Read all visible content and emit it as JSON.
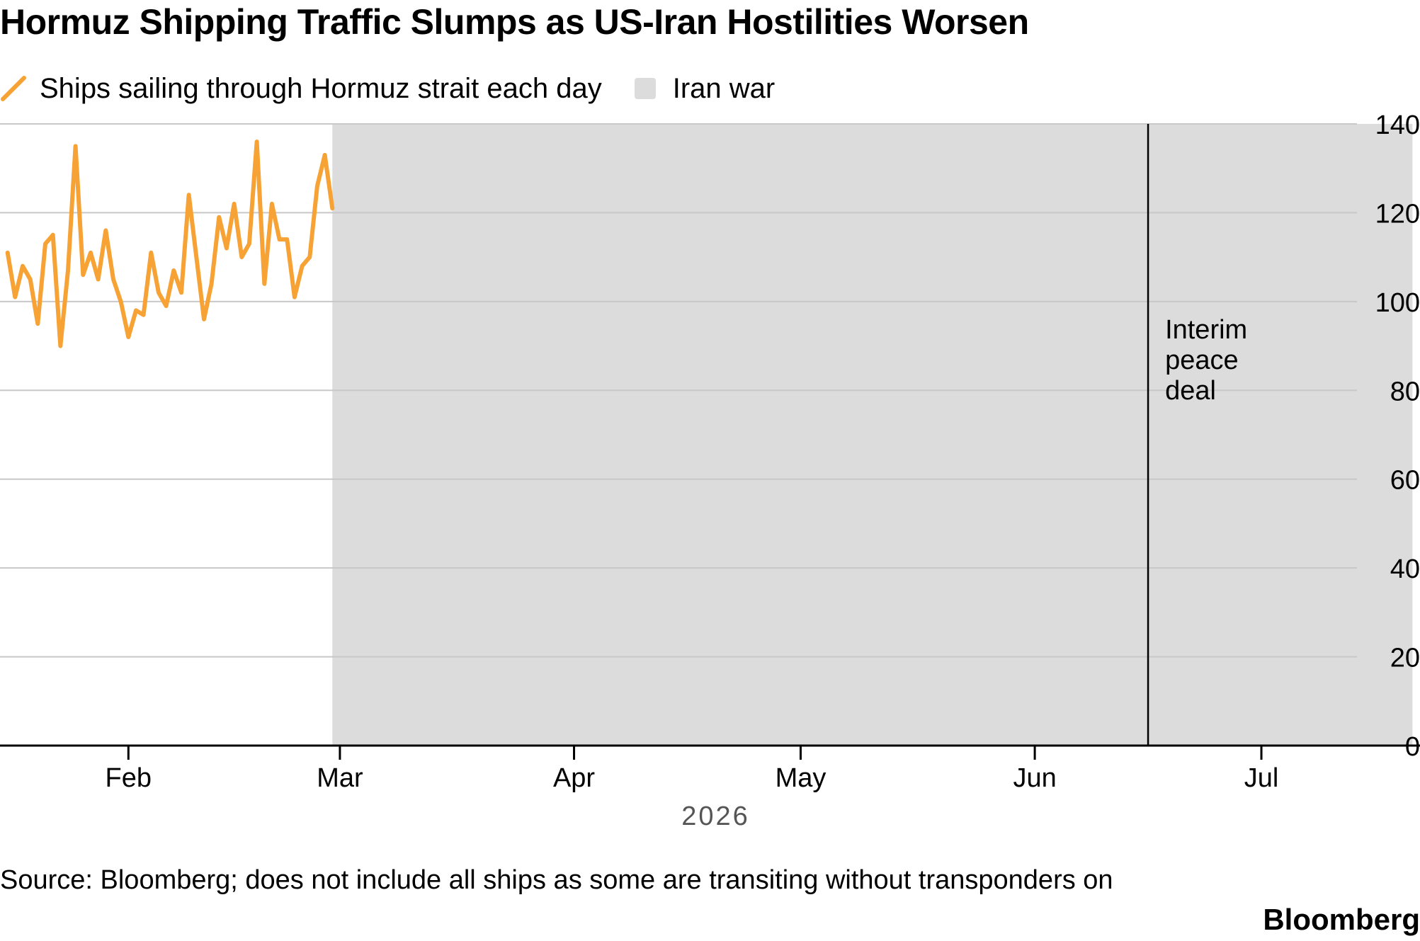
{
  "title": "Hormuz Shipping Traffic Slumps as US-Iran Hostilities Worsen",
  "legend": {
    "line_label": "Ships sailing through Hormuz strait each day",
    "band_label": "Iran war"
  },
  "source": "Source: Bloomberg; does not include all ships as some are transiting without transponders on",
  "brand": "Bloomberg",
  "colors": {
    "line": "#f7a234",
    "band": "#dcdcdc",
    "grid": "#c8c8c8",
    "axis": "#000000"
  },
  "chart_data": {
    "type": "line",
    "title": "Hormuz Shipping Traffic Slumps as US-Iran Hostilities Worsen",
    "ylim": [
      0,
      140
    ],
    "yticks": [
      0,
      20,
      40,
      60,
      80,
      100,
      120,
      140
    ],
    "ytick_labels": [
      "0",
      "20",
      "40",
      "60",
      "80",
      "100",
      "120",
      "140"
    ],
    "y_axis_side": "right",
    "grid": "horizontal",
    "legend_position": "top-left",
    "x_range": [
      "2026-01-15",
      "2026-07-22"
    ],
    "xticks": [
      {
        "date": "2026-02-01",
        "label": "Feb"
      },
      {
        "date": "2026-03-01",
        "label": "Mar"
      },
      {
        "date": "2026-04-01",
        "label": "Apr"
      },
      {
        "date": "2026-05-01",
        "label": "May"
      },
      {
        "date": "2026-06-01",
        "label": "Jun"
      },
      {
        "date": "2026-07-01",
        "label": "Jul"
      }
    ],
    "year_label": "2026",
    "shaded_range": {
      "label": "Iran war",
      "start": "2026-02-28",
      "end": "2026-07-21"
    },
    "annotation": {
      "date": "2026-06-16",
      "label_lines": [
        "Interim",
        "peace",
        "deal"
      ]
    },
    "series": [
      {
        "name": "Ships sailing through Hormuz strait each day",
        "points": [
          [
            "2026-01-16",
            111
          ],
          [
            "2026-01-17",
            101
          ],
          [
            "2026-01-18",
            108
          ],
          [
            "2026-01-19",
            105
          ],
          [
            "2026-01-20",
            95
          ],
          [
            "2026-01-21",
            113
          ],
          [
            "2026-01-22",
            115
          ],
          [
            "2026-01-23",
            90
          ],
          [
            "2026-01-24",
            107
          ],
          [
            "2026-01-25",
            135
          ],
          [
            "2026-01-26",
            106
          ],
          [
            "2026-01-27",
            111
          ],
          [
            "2026-01-28",
            105
          ],
          [
            "2026-01-29",
            116
          ],
          [
            "2026-01-30",
            105
          ],
          [
            "2026-01-31",
            100
          ],
          [
            "2026-02-01",
            92
          ],
          [
            "2026-02-02",
            98
          ],
          [
            "2026-02-03",
            97
          ],
          [
            "2026-02-04",
            111
          ],
          [
            "2026-02-05",
            102
          ],
          [
            "2026-02-06",
            99
          ],
          [
            "2026-02-07",
            107
          ],
          [
            "2026-02-08",
            102
          ],
          [
            "2026-02-09",
            124
          ],
          [
            "2026-02-10",
            110
          ],
          [
            "2026-02-11",
            96
          ],
          [
            "2026-02-12",
            104
          ],
          [
            "2026-02-13",
            119
          ],
          [
            "2026-02-14",
            112
          ],
          [
            "2026-02-15",
            122
          ],
          [
            "2026-02-16",
            110
          ],
          [
            "2026-02-17",
            113
          ],
          [
            "2026-02-18",
            136
          ],
          [
            "2026-02-19",
            104
          ],
          [
            "2026-02-20",
            122
          ],
          [
            "2026-02-21",
            114
          ],
          [
            "2026-02-22",
            114
          ],
          [
            "2026-02-23",
            101
          ],
          [
            "2026-02-24",
            108
          ],
          [
            "2026-02-25",
            110
          ],
          [
            "2026-02-26",
            126
          ],
          [
            "2026-02-27",
            133
          ],
          [
            "2026-02-28",
            121
          ]
        ]
      }
    ]
  }
}
